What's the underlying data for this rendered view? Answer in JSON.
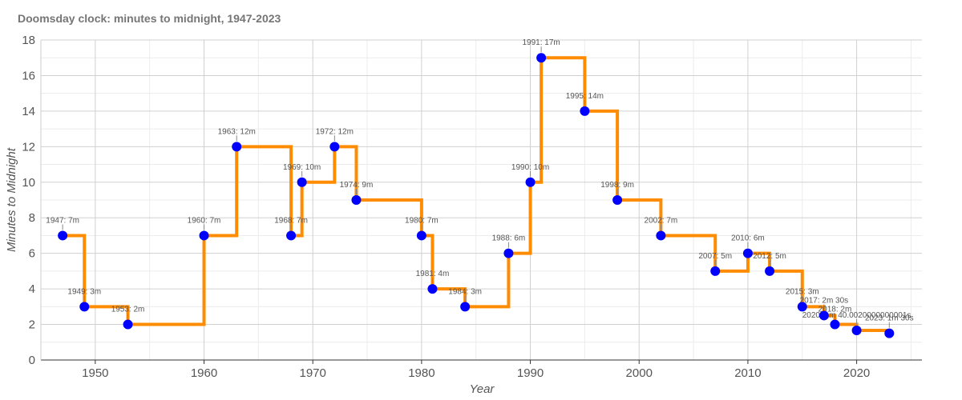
{
  "chart_data": {
    "type": "line",
    "title": "Doomsday clock: minutes to midnight, 1947-2023",
    "xlabel": "Year",
    "ylabel": "Minutes to Midnight",
    "xlim": [
      1945,
      2026
    ],
    "ylim": [
      0,
      18
    ],
    "x_ticks": [
      1950,
      1960,
      1970,
      1980,
      1990,
      2000,
      2010,
      2020
    ],
    "y_ticks": [
      0,
      2,
      4,
      6,
      8,
      10,
      12,
      14,
      16,
      18
    ],
    "grid": true,
    "line_style": "step",
    "colors": {
      "line": "#FF8C00",
      "points": "#0000FF"
    },
    "points": [
      {
        "x": 1947,
        "y": 7,
        "label": "1947: 7m"
      },
      {
        "x": 1949,
        "y": 3,
        "label": "1949: 3m"
      },
      {
        "x": 1953,
        "y": 2,
        "label": "1953: 2m"
      },
      {
        "x": 1960,
        "y": 7,
        "label": "1960: 7m"
      },
      {
        "x": 1963,
        "y": 12,
        "label": "1963: 12m"
      },
      {
        "x": 1968,
        "y": 7,
        "label": "1968: 7m"
      },
      {
        "x": 1969,
        "y": 10,
        "label": "1969: 10m"
      },
      {
        "x": 1972,
        "y": 12,
        "label": "1972: 12m"
      },
      {
        "x": 1974,
        "y": 9,
        "label": "1974: 9m"
      },
      {
        "x": 1980,
        "y": 7,
        "label": "1980: 7m"
      },
      {
        "x": 1981,
        "y": 4,
        "label": "1981: 4m"
      },
      {
        "x": 1984,
        "y": 3,
        "label": "1984: 3m"
      },
      {
        "x": 1988,
        "y": 6,
        "label": "1988: 6m"
      },
      {
        "x": 1990,
        "y": 10,
        "label": "1990: 10m"
      },
      {
        "x": 1991,
        "y": 17,
        "label": "1991: 17m"
      },
      {
        "x": 1995,
        "y": 14,
        "label": "1995: 14m"
      },
      {
        "x": 1998,
        "y": 9,
        "label": "1998: 9m"
      },
      {
        "x": 2002,
        "y": 7,
        "label": "2002: 7m"
      },
      {
        "x": 2007,
        "y": 5,
        "label": "2007: 5m"
      },
      {
        "x": 2010,
        "y": 6,
        "label": "2010: 6m"
      },
      {
        "x": 2012,
        "y": 5,
        "label": "2012: 5m"
      },
      {
        "x": 2015,
        "y": 3,
        "label": "2015: 3m"
      },
      {
        "x": 2017,
        "y": 2.5,
        "label": "2017: 2m 30s"
      },
      {
        "x": 2018,
        "y": 2,
        "label": "2018: 2m"
      },
      {
        "x": 2020,
        "y": 1.6667,
        "label": "2020: 1m 40.0020000000001s"
      },
      {
        "x": 2023,
        "y": 1.5,
        "label": "2023: 1m 30s"
      }
    ]
  }
}
